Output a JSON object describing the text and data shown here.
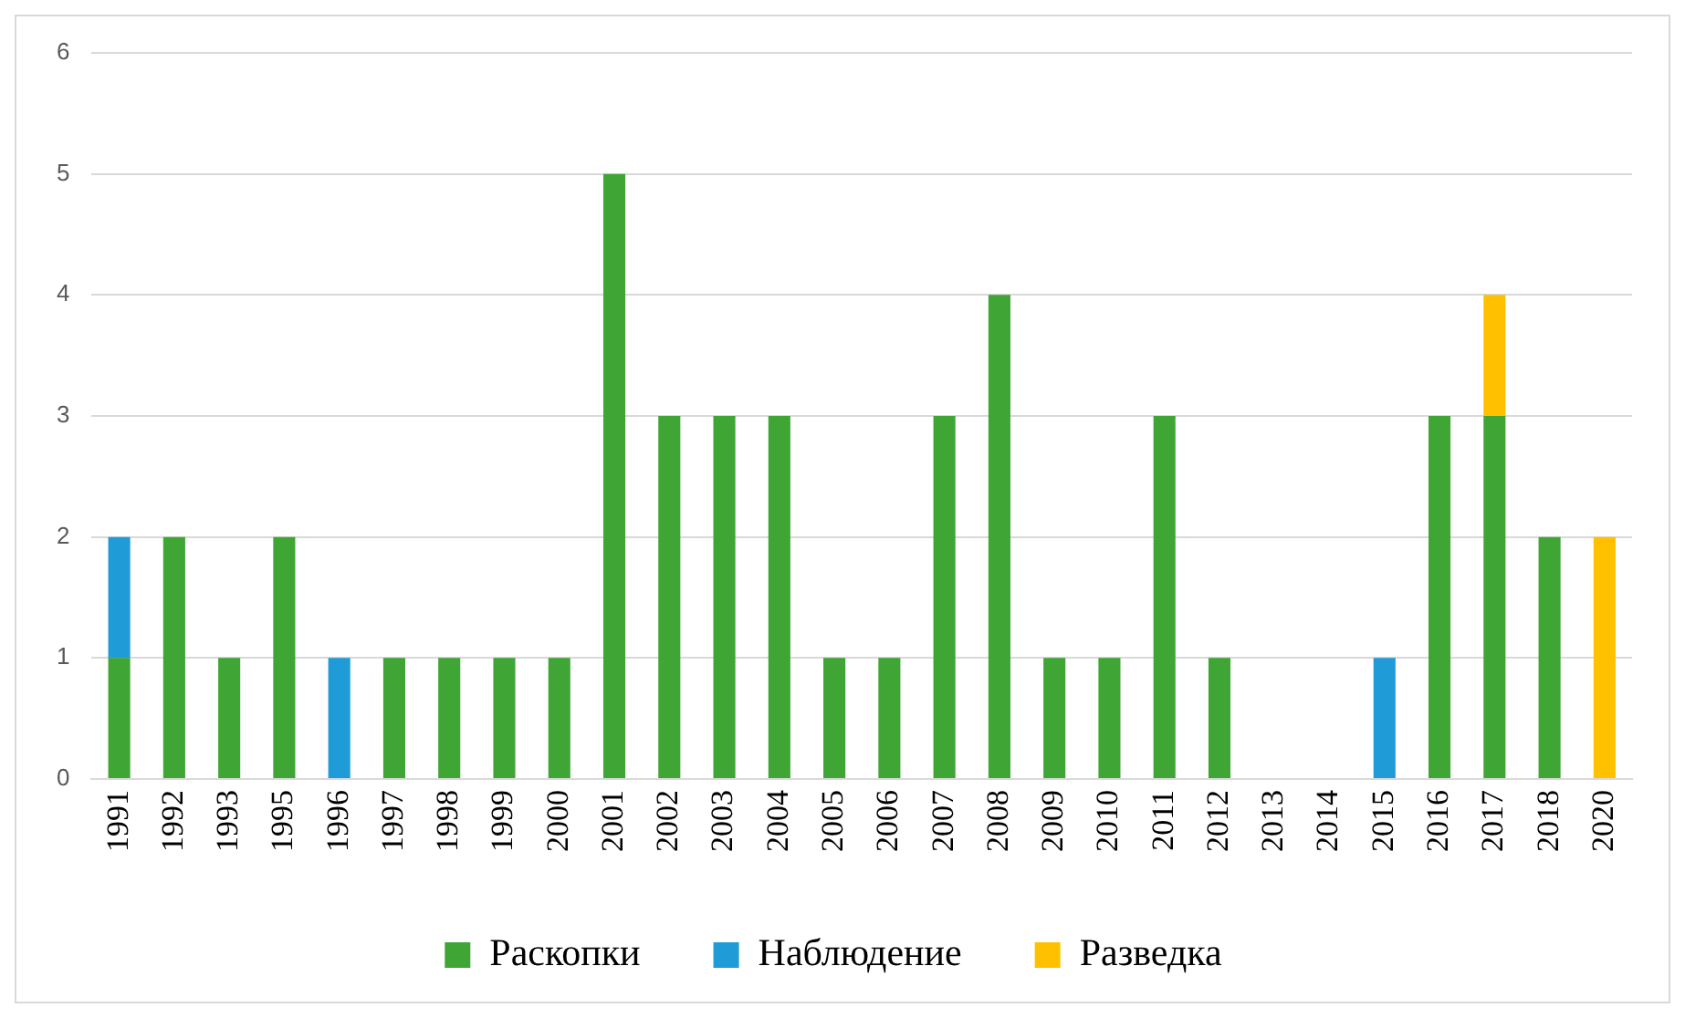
{
  "chart_data": {
    "type": "bar",
    "stacked": true,
    "categories": [
      "1991",
      "1992",
      "1993",
      "1995",
      "1996",
      "1997",
      "1998",
      "1999",
      "2000",
      "2001",
      "2002",
      "2003",
      "2004",
      "2005",
      "2006",
      "2007",
      "2008",
      "2009",
      "2010",
      "2011",
      "2012",
      "2013",
      "2014",
      "2015",
      "2016",
      "2017",
      "2018",
      "2020"
    ],
    "series": [
      {
        "name": "Раскопки",
        "color": "#3fa535",
        "values": [
          1,
          2,
          1,
          2,
          0,
          1,
          1,
          1,
          1,
          5,
          3,
          3,
          3,
          1,
          1,
          3,
          4,
          1,
          1,
          3,
          1,
          0,
          0,
          0,
          3,
          3,
          2,
          0
        ]
      },
      {
        "name": "Наблюдение",
        "color": "#1f9bd7",
        "values": [
          1,
          0,
          0,
          0,
          1,
          0,
          0,
          0,
          0,
          0,
          0,
          0,
          0,
          0,
          0,
          0,
          0,
          0,
          0,
          0,
          0,
          0,
          0,
          1,
          0,
          0,
          0,
          0
        ]
      },
      {
        "name": "Разведка",
        "color": "#ffc000",
        "values": [
          0,
          0,
          0,
          0,
          0,
          0,
          0,
          0,
          0,
          0,
          0,
          0,
          0,
          0,
          0,
          0,
          0,
          0,
          0,
          0,
          0,
          0,
          0,
          0,
          0,
          1,
          0,
          2
        ]
      }
    ],
    "ylim": [
      0,
      6
    ],
    "yticks": [
      0,
      1,
      2,
      3,
      4,
      5,
      6
    ],
    "grid": "y",
    "legend": "bottom"
  }
}
